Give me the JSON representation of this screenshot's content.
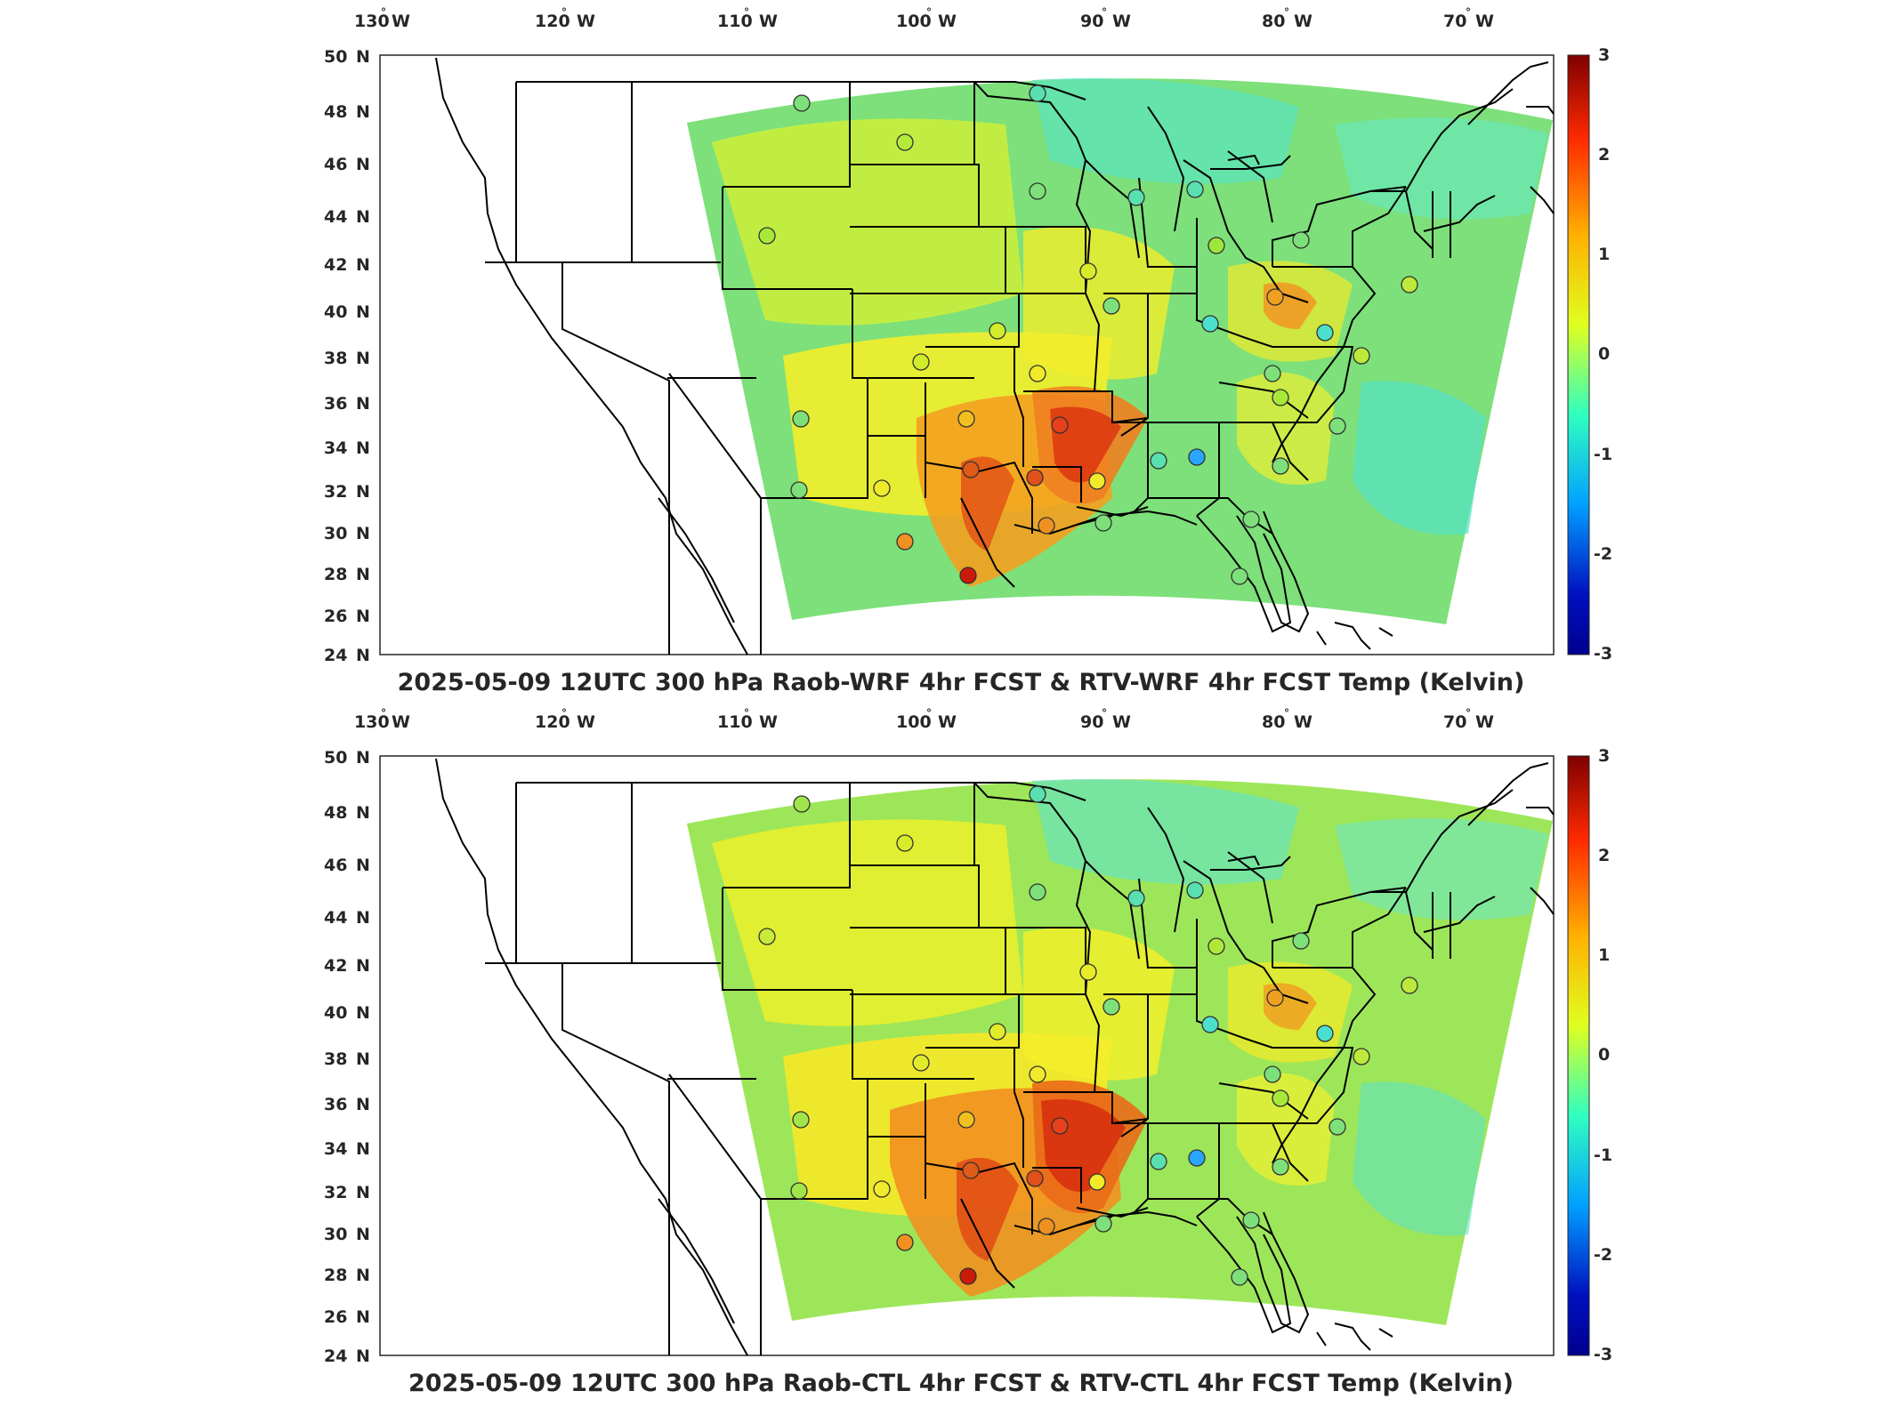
{
  "panels": [
    {
      "title": "2025-05-09 12UTC 300 hPa Raob-WRF 4hr FCST & RTV-WRF 4hr FCST Temp (Kelvin)"
    },
    {
      "title": "2025-05-09 12UTC 300 hPa Raob-CTL 4hr FCST & RTV-CTL 4hr FCST Temp (Kelvin)"
    }
  ],
  "lon_labels": [
    {
      "num": "130",
      "hemi": "W"
    },
    {
      "num": "120",
      "hemi": "W"
    },
    {
      "num": "110",
      "hemi": "W"
    },
    {
      "num": "100",
      "hemi": "W"
    },
    {
      "num": "90",
      "hemi": "W"
    },
    {
      "num": "80",
      "hemi": "W"
    },
    {
      "num": "70",
      "hemi": "W"
    }
  ],
  "lat_labels": [
    {
      "num": "50",
      "hemi": "N"
    },
    {
      "num": "48",
      "hemi": "N"
    },
    {
      "num": "46",
      "hemi": "N"
    },
    {
      "num": "44",
      "hemi": "N"
    },
    {
      "num": "42",
      "hemi": "N"
    },
    {
      "num": "40",
      "hemi": "N"
    },
    {
      "num": "38",
      "hemi": "N"
    },
    {
      "num": "36",
      "hemi": "N"
    },
    {
      "num": "34",
      "hemi": "N"
    },
    {
      "num": "32",
      "hemi": "N"
    },
    {
      "num": "30",
      "hemi": "N"
    },
    {
      "num": "28",
      "hemi": "N"
    },
    {
      "num": "26",
      "hemi": "N"
    },
    {
      "num": "24",
      "hemi": "N"
    }
  ],
  "colorbar": {
    "ticks": [
      "3",
      "2",
      "1",
      "0",
      "-1",
      "-2",
      "-3"
    ],
    "colors": [
      "#7f0000",
      "#ff2a00",
      "#ffb000",
      "#e0ff20",
      "#30ffc0",
      "#00a0ff",
      "#0010c0",
      "#00008f"
    ]
  },
  "map_colors": {
    "background": "#7de07a",
    "warm": "#f2ef2a",
    "hot": "#f4a020",
    "very_hot": "#d92b10",
    "cool": "#48e0c8",
    "outline": "#000000"
  }
}
